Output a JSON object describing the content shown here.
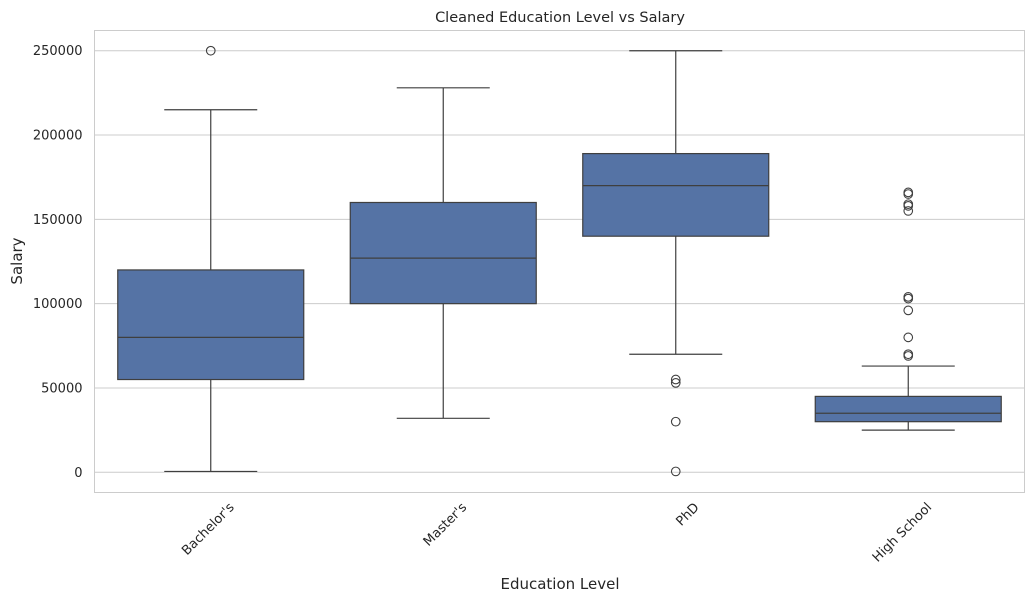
{
  "chart_data": {
    "type": "boxplot",
    "title": "Cleaned Education Level vs Salary",
    "xlabel": "Education Level",
    "ylabel": "Salary",
    "ylim": [
      -12000,
      262000
    ],
    "yticks": [
      0,
      50000,
      100000,
      150000,
      200000,
      250000
    ],
    "grid": true,
    "box_color": "#5573a5",
    "line_color": "#3f3f3f",
    "categories": [
      "Bachelor's",
      "Master's",
      "PhD",
      "High School"
    ],
    "boxes": [
      {
        "category": "Bachelor's",
        "whisker_low": 500,
        "q1": 55000,
        "median": 80000,
        "q3": 120000,
        "whisker_high": 215000,
        "outliers": [
          250000
        ]
      },
      {
        "category": "Master's",
        "whisker_low": 32000,
        "q1": 100000,
        "median": 127000,
        "q3": 160000,
        "whisker_high": 228000,
        "outliers": []
      },
      {
        "category": "PhD",
        "whisker_low": 70000,
        "q1": 140000,
        "median": 170000,
        "q3": 189000,
        "whisker_high": 250000,
        "outliers": [
          55000,
          53000,
          30000,
          500
        ]
      },
      {
        "category": "High School",
        "whisker_low": 25000,
        "q1": 30000,
        "median": 35000,
        "q3": 45000,
        "whisker_high": 63000,
        "outliers": [
          166000,
          165000,
          159000,
          158000,
          155000,
          104000,
          103000,
          96000,
          80000,
          70000,
          69000
        ]
      }
    ]
  }
}
